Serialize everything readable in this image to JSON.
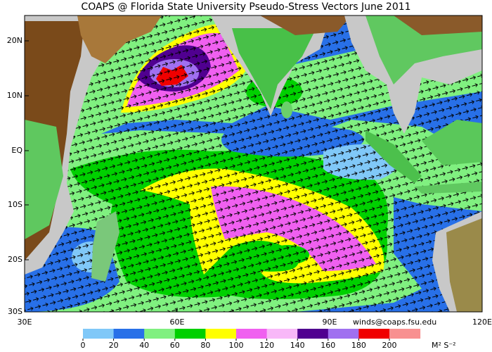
{
  "title": "COAPS @ Florida State University Pseudo-Stress Vectors June 2011",
  "x_axis": {
    "labels": [
      "30E",
      "60E",
      "90E",
      "120E"
    ]
  },
  "y_axis": {
    "labels": [
      "20N",
      "10N",
      "EQ",
      "10S",
      "20S",
      "30S"
    ]
  },
  "colorbar": {
    "colors": [
      "#80c8f8",
      "#2870e8",
      "#80f080",
      "#00d000",
      "#ffff00",
      "#f060f0",
      "#f8b8f8",
      "#500090",
      "#a070f0",
      "#f00000",
      "#f89090"
    ],
    "ticks": [
      0,
      20,
      40,
      60,
      80,
      100,
      120,
      140,
      160,
      180,
      200
    ],
    "unit": "M² S⁻²"
  },
  "credit": "winds@coaps.fsu.edu"
}
